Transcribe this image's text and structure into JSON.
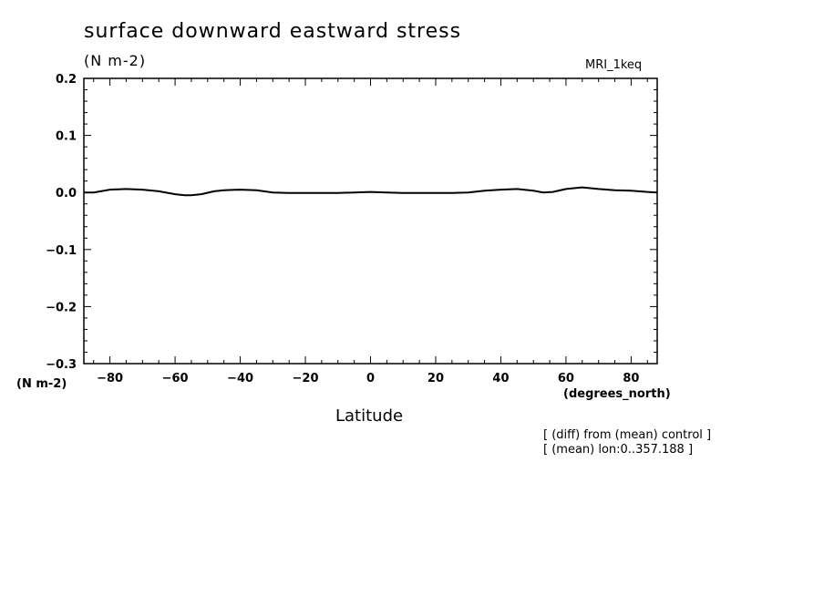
{
  "header": {
    "title": "surface downward eastward stress",
    "units": "(N m-2)",
    "model": "MRI_1keq"
  },
  "axes": {
    "y_units_label": "(N m-2)",
    "x_units_label": "(degrees_north)",
    "x_title": "Latitude"
  },
  "notes": [
    "[ (diff) from (mean) control ]",
    "[ (mean) lon:0..357.188 ]"
  ],
  "chart_data": {
    "type": "line",
    "title": "surface downward eastward stress",
    "xlabel": "Latitude",
    "ylabel": "(N m-2)",
    "xlim": [
      -88,
      88
    ],
    "ylim": [
      -0.3,
      0.2
    ],
    "x_ticks": [
      -80,
      -60,
      -40,
      -20,
      0,
      20,
      40,
      60,
      80
    ],
    "x_tick_labels": [
      "−80",
      "−60",
      "−40",
      "−20",
      "0",
      "20",
      "40",
      "60",
      "80"
    ],
    "y_ticks": [
      -0.3,
      -0.2,
      -0.1,
      0.0,
      0.1,
      0.2
    ],
    "y_tick_labels": [
      "−0.3",
      "−0.2",
      "−0.1",
      "0.0",
      "0.1",
      "0.2"
    ],
    "grid": false,
    "series": [
      {
        "x": [
          -88,
          -85,
          -80,
          -75,
          -70,
          -65,
          -60,
          -57,
          -55,
          -52,
          -48,
          -45,
          -40,
          -35,
          -30,
          -25,
          -20,
          -10,
          -5,
          0,
          5,
          10,
          20,
          25,
          30,
          35,
          40,
          45,
          50,
          53,
          56,
          60,
          65,
          70,
          75,
          80,
          85,
          88
        ],
        "y": [
          0.0,
          0.0,
          0.005,
          0.006,
          0.005,
          0.002,
          -0.003,
          -0.005,
          -0.005,
          -0.003,
          0.002,
          0.004,
          0.005,
          0.004,
          0.0,
          -0.001,
          -0.001,
          -0.001,
          0.0,
          0.001,
          0.0,
          -0.001,
          -0.001,
          -0.001,
          0.0,
          0.003,
          0.005,
          0.006,
          0.003,
          0.0,
          0.001,
          0.006,
          0.009,
          0.006,
          0.004,
          0.003,
          0.001,
          0.0
        ]
      }
    ]
  }
}
